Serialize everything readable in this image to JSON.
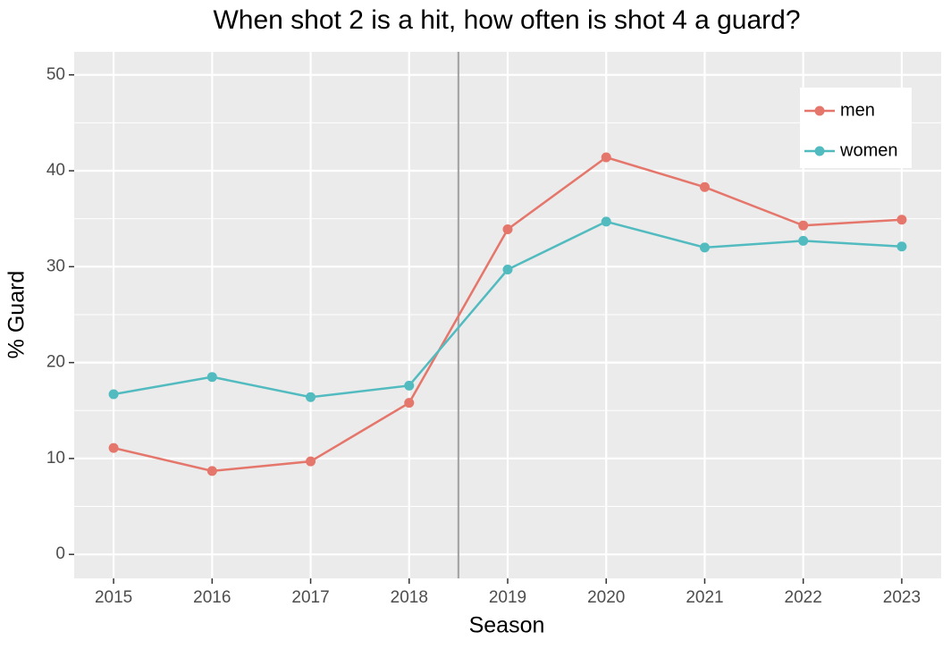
{
  "chart_data": {
    "type": "line",
    "title": "When shot 2 is a hit, how often is shot 4 a guard?",
    "x_label": "Season",
    "y_label": "% Guard",
    "x": [
      2015,
      2016,
      2017,
      2018,
      2019,
      2020,
      2021,
      2022,
      2023
    ],
    "series": [
      {
        "name": "men",
        "color": "#e5766b",
        "values": [
          11.1,
          8.7,
          9.7,
          15.8,
          33.9,
          41.4,
          38.3,
          34.3,
          34.9
        ]
      },
      {
        "name": "women",
        "color": "#52bbc0",
        "values": [
          16.7,
          18.5,
          16.4,
          17.6,
          29.7,
          34.7,
          32.0,
          32.7,
          32.1
        ]
      }
    ],
    "xlim": [
      2014.6,
      2023.4
    ],
    "xticks": [
      2015,
      2016,
      2017,
      2018,
      2019,
      2020,
      2021,
      2022,
      2023
    ],
    "ylim": [
      -2.5,
      52.4
    ],
    "yticks": [
      0,
      10,
      20,
      30,
      40,
      50
    ],
    "grid": true,
    "vline": {
      "x": 2018.5,
      "color": "#a6a6a6"
    },
    "legend_position": "top-right"
  }
}
